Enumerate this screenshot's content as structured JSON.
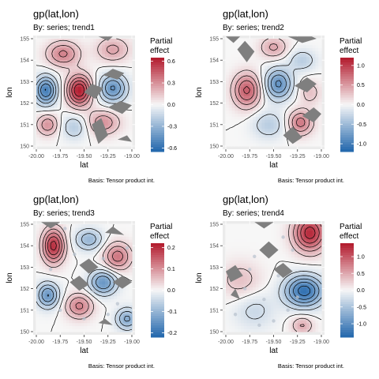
{
  "colors": {
    "panel_bg": "#ebebeb",
    "land": "#7f7f7f",
    "low": "#2166ac",
    "mid": "#f7f7f7",
    "high": "#b2182b",
    "contour": "#000000",
    "points": "#b9c3cf"
  },
  "chart_data": [
    {
      "type": "heatmap",
      "title": "gp(lat,lon)",
      "subtitle": "By: series; trend1",
      "xlabel": "lat",
      "ylabel": "lon",
      "caption": "Basis: Tensor product int.",
      "legend_title": [
        "Partial",
        "effect"
      ],
      "xticks": [
        "-20.00",
        "-19.75",
        "-19.50",
        "-19.25",
        "-19.00"
      ],
      "yticks": [
        "150",
        "151",
        "152",
        "153",
        "154",
        "155"
      ],
      "xlim": [
        -20.0,
        -19.0
      ],
      "ylim": [
        150,
        155
      ],
      "fill_range": [
        -0.65,
        0.65
      ],
      "legend_ticks": [
        {
          "v": 0.6,
          "label": "0.6"
        },
        {
          "v": 0.3,
          "label": "0.3"
        },
        {
          "v": 0.0,
          "label": "0.0"
        },
        {
          "v": -0.3,
          "label": "-0.3"
        },
        {
          "v": -0.6,
          "label": "-0.6"
        }
      ],
      "blobs": [
        {
          "x": -19.55,
          "y": 152.6,
          "sx": 0.09,
          "sy": 0.5,
          "a": 0.65
        },
        {
          "x": -19.9,
          "y": 152.6,
          "sx": 0.08,
          "sy": 0.45,
          "a": -0.55
        },
        {
          "x": -19.2,
          "y": 152.7,
          "sx": 0.1,
          "sy": 0.45,
          "a": -0.45
        },
        {
          "x": -19.72,
          "y": 154.3,
          "sx": 0.12,
          "sy": 0.4,
          "a": 0.35
        },
        {
          "x": -19.2,
          "y": 154.5,
          "sx": 0.12,
          "sy": 0.4,
          "a": 0.25
        },
        {
          "x": -19.88,
          "y": 151.0,
          "sx": 0.08,
          "sy": 0.35,
          "a": 0.3
        },
        {
          "x": -19.6,
          "y": 150.9,
          "sx": 0.1,
          "sy": 0.4,
          "a": -0.2
        },
        {
          "x": -19.3,
          "y": 151.1,
          "sx": 0.12,
          "sy": 0.4,
          "a": 0.3
        }
      ],
      "land": [
        [
          [
            -19.35,
            155.1
          ],
          [
            -19.25,
            154.9
          ],
          [
            -19.2,
            155.1
          ]
        ],
        [
          [
            -19.3,
            153.3
          ],
          [
            -19.2,
            153.6
          ],
          [
            -19.08,
            153.4
          ],
          [
            -19.15,
            153.1
          ]
        ],
        [
          [
            -19.5,
            152.5
          ],
          [
            -19.42,
            152.9
          ],
          [
            -19.3,
            152.7
          ],
          [
            -19.38,
            152.2
          ]
        ],
        [
          [
            -19.25,
            151.8
          ],
          [
            -19.12,
            152.1
          ],
          [
            -19.0,
            151.9
          ],
          [
            -19.1,
            151.5
          ]
        ],
        [
          [
            -19.42,
            151.0
          ],
          [
            -19.32,
            151.3
          ],
          [
            -19.25,
            150.5
          ],
          [
            -19.35,
            150.1
          ]
        ],
        [
          [
            -19.15,
            150.3
          ],
          [
            -19.05,
            150.5
          ],
          [
            -19.0,
            150.2
          ]
        ]
      ],
      "points": []
    },
    {
      "type": "heatmap",
      "title": "gp(lat,lon)",
      "subtitle": "By: series; trend2",
      "xlabel": "lat",
      "ylabel": "lon",
      "caption": "Basis: Tensor product int.",
      "legend_title": [
        "Partial",
        "effect"
      ],
      "xticks": [
        "-20.00",
        "-19.75",
        "-19.50",
        "-19.25",
        "-19.00"
      ],
      "yticks": [
        "150",
        "151",
        "152",
        "153",
        "154",
        "155"
      ],
      "xlim": [
        -20.0,
        -19.0
      ],
      "ylim": [
        150,
        155
      ],
      "fill_range": [
        -1.2,
        1.2
      ],
      "legend_ticks": [
        {
          "v": 1.0,
          "label": "1.0"
        },
        {
          "v": 0.5,
          "label": "0.5"
        },
        {
          "v": 0.0,
          "label": "0.0"
        },
        {
          "v": -0.5,
          "label": "-0.5"
        },
        {
          "v": -1.0,
          "label": "-1.0"
        }
      ],
      "blobs": [
        {
          "x": -19.78,
          "y": 152.6,
          "sx": 0.1,
          "sy": 0.55,
          "a": 0.85
        },
        {
          "x": -19.45,
          "y": 152.9,
          "sx": 0.1,
          "sy": 0.5,
          "a": -0.85
        },
        {
          "x": -19.12,
          "y": 152.5,
          "sx": 0.08,
          "sy": 0.4,
          "a": 0.3
        },
        {
          "x": -19.22,
          "y": 151.1,
          "sx": 0.09,
          "sy": 0.4,
          "a": 0.7
        },
        {
          "x": -19.55,
          "y": 151.0,
          "sx": 0.12,
          "sy": 0.45,
          "a": -0.35
        },
        {
          "x": -19.5,
          "y": 154.6,
          "sx": 0.1,
          "sy": 0.35,
          "a": 0.45
        },
        {
          "x": -19.2,
          "y": 154.0,
          "sx": 0.1,
          "sy": 0.35,
          "a": -0.35
        }
      ],
      "land": [
        [
          [
            -20.0,
            155.1
          ],
          [
            -19.92,
            154.8
          ],
          [
            -19.85,
            155.1
          ]
        ],
        [
          [
            -19.88,
            154.5
          ],
          [
            -19.8,
            154.9
          ],
          [
            -19.7,
            154.4
          ],
          [
            -19.78,
            153.9
          ]
        ],
        [
          [
            -19.35,
            155.1
          ],
          [
            -19.2,
            154.8
          ],
          [
            -19.05,
            155.0
          ],
          [
            -19.1,
            155.1
          ]
        ],
        [
          [
            -19.28,
            152.8
          ],
          [
            -19.15,
            153.2
          ],
          [
            -19.05,
            152.9
          ],
          [
            -19.15,
            152.5
          ]
        ],
        [
          [
            -19.2,
            151.4
          ],
          [
            -19.08,
            151.8
          ],
          [
            -19.0,
            151.5
          ],
          [
            -19.08,
            151.1
          ]
        ],
        [
          [
            -19.4,
            150.5
          ],
          [
            -19.3,
            150.9
          ],
          [
            -19.2,
            150.4
          ],
          [
            -19.3,
            150.1
          ]
        ]
      ],
      "points": []
    },
    {
      "type": "heatmap",
      "title": "gp(lat,lon)",
      "subtitle": "By: series; trend3",
      "xlabel": "lat",
      "ylabel": "lon",
      "caption": "Basis: Tensor product int.",
      "legend_title": [
        "Partial",
        "effect"
      ],
      "xticks": [
        "-20.00",
        "-19.75",
        "-19.50",
        "-19.25",
        "-19.00"
      ],
      "yticks": [
        "150",
        "151",
        "152",
        "153",
        "154",
        "155"
      ],
      "xlim": [
        -20.0,
        -19.0
      ],
      "ylim": [
        150,
        155
      ],
      "fill_range": [
        -0.22,
        0.22
      ],
      "legend_ticks": [
        {
          "v": 0.2,
          "label": "0.2"
        },
        {
          "v": 0.1,
          "label": "0.1"
        },
        {
          "v": 0.0,
          "label": "0.0"
        },
        {
          "v": -0.1,
          "label": "-0.1"
        },
        {
          "v": -0.2,
          "label": "-0.2"
        }
      ],
      "blobs": [
        {
          "x": -19.82,
          "y": 154.0,
          "sx": 0.08,
          "sy": 0.55,
          "a": 0.2
        },
        {
          "x": -19.88,
          "y": 151.7,
          "sx": 0.08,
          "sy": 0.4,
          "a": -0.15
        },
        {
          "x": -19.55,
          "y": 151.2,
          "sx": 0.1,
          "sy": 0.4,
          "a": 0.12
        },
        {
          "x": -19.3,
          "y": 152.3,
          "sx": 0.1,
          "sy": 0.4,
          "a": -0.15
        },
        {
          "x": -19.15,
          "y": 153.5,
          "sx": 0.1,
          "sy": 0.45,
          "a": 0.13
        },
        {
          "x": -19.45,
          "y": 154.3,
          "sx": 0.1,
          "sy": 0.35,
          "a": -0.1
        },
        {
          "x": -19.05,
          "y": 150.6,
          "sx": 0.08,
          "sy": 0.35,
          "a": -0.12
        }
      ],
      "land": [
        [
          [
            -19.95,
            155.1
          ],
          [
            -19.85,
            154.8
          ],
          [
            -19.75,
            155.1
          ]
        ],
        [
          [
            -19.55,
            153.1
          ],
          [
            -19.45,
            153.4
          ],
          [
            -19.35,
            153.0
          ],
          [
            -19.45,
            152.7
          ]
        ],
        [
          [
            -19.65,
            152.3
          ],
          [
            -19.55,
            152.6
          ],
          [
            -19.45,
            152.2
          ],
          [
            -19.55,
            151.9
          ]
        ],
        [
          [
            -19.28,
            154.6
          ],
          [
            -19.2,
            154.9
          ],
          [
            -19.08,
            154.5
          ]
        ],
        [
          [
            -19.2,
            152.3
          ],
          [
            -19.1,
            152.6
          ],
          [
            -19.0,
            152.3
          ],
          [
            -19.1,
            152.0
          ]
        ],
        [
          [
            -19.35,
            150.4
          ],
          [
            -19.28,
            150.6
          ],
          [
            -19.2,
            150.3
          ]
        ]
      ],
      "points": [
        [
          -19.75,
          151.0
        ],
        [
          -19.6,
          153.6
        ],
        [
          -19.4,
          151.9
        ],
        [
          -19.3,
          153.4
        ],
        [
          -19.15,
          151.3
        ],
        [
          -19.85,
          152.9
        ],
        [
          -19.5,
          150.6
        ],
        [
          -19.05,
          153.9
        ],
        [
          -19.7,
          154.8
        ],
        [
          -19.25,
          150.8
        ]
      ]
    },
    {
      "type": "heatmap",
      "title": "gp(lat,lon)",
      "subtitle": "By: series; trend4",
      "xlabel": "lat",
      "ylabel": "lon",
      "caption": "Basis: Tensor product int.",
      "legend_title": [
        "Partial",
        "effect"
      ],
      "xticks": [
        "-20.00",
        "-19.75",
        "-19.50",
        "-19.25",
        "-19.00"
      ],
      "yticks": [
        "150",
        "151",
        "152",
        "153",
        "154",
        "155"
      ],
      "xlim": [
        -20.0,
        -19.0
      ],
      "ylim": [
        150,
        155
      ],
      "fill_range": [
        -1.4,
        1.4
      ],
      "legend_ticks": [
        {
          "v": 1.0,
          "label": "1.0"
        },
        {
          "v": 0.5,
          "label": "0.5"
        },
        {
          "v": 0.0,
          "label": "0.0"
        },
        {
          "v": -0.5,
          "label": "-0.5"
        },
        {
          "v": -1.0,
          "label": "-1.0"
        }
      ],
      "blobs": [
        {
          "x": -19.12,
          "y": 154.6,
          "sx": 0.12,
          "sy": 0.6,
          "a": 1.3
        },
        {
          "x": -19.18,
          "y": 151.9,
          "sx": 0.14,
          "sy": 0.5,
          "a": -1.3
        },
        {
          "x": -19.85,
          "y": 152.4,
          "sx": 0.15,
          "sy": 0.6,
          "a": 0.35
        },
        {
          "x": -19.7,
          "y": 151.0,
          "sx": 0.15,
          "sy": 0.6,
          "a": -0.3
        },
        {
          "x": -19.2,
          "y": 150.3,
          "sx": 0.08,
          "sy": 0.3,
          "a": 0.5
        }
      ],
      "land": [
        [
          [
            -19.7,
            155.1
          ],
          [
            -19.6,
            154.8
          ],
          [
            -19.5,
            155.1
          ]
        ],
        [
          [
            -19.65,
            153.8
          ],
          [
            -19.55,
            154.2
          ],
          [
            -19.45,
            153.8
          ],
          [
            -19.55,
            153.4
          ]
        ],
        [
          [
            -19.5,
            152.9
          ],
          [
            -19.4,
            153.2
          ],
          [
            -19.3,
            152.8
          ],
          [
            -19.4,
            152.5
          ]
        ],
        [
          [
            -20.0,
            152.8
          ],
          [
            -19.9,
            153.1
          ],
          [
            -19.82,
            152.6
          ],
          [
            -19.95,
            152.3
          ]
        ],
        [
          [
            -19.95,
            151.7
          ],
          [
            -19.9,
            152.0
          ],
          [
            -19.85,
            151.5
          ]
        ]
      ],
      "points": [
        [
          -19.8,
          152.0
        ],
        [
          -19.7,
          153.5
        ],
        [
          -19.6,
          151.5
        ],
        [
          -19.5,
          150.5
        ],
        [
          -19.45,
          152.6
        ],
        [
          -19.35,
          151.0
        ],
        [
          -19.3,
          153.8
        ],
        [
          -19.9,
          150.8
        ],
        [
          -19.65,
          150.3
        ],
        [
          -19.25,
          151.6
        ],
        [
          -19.4,
          154.4
        ],
        [
          -19.75,
          152.9
        ]
      ]
    }
  ]
}
